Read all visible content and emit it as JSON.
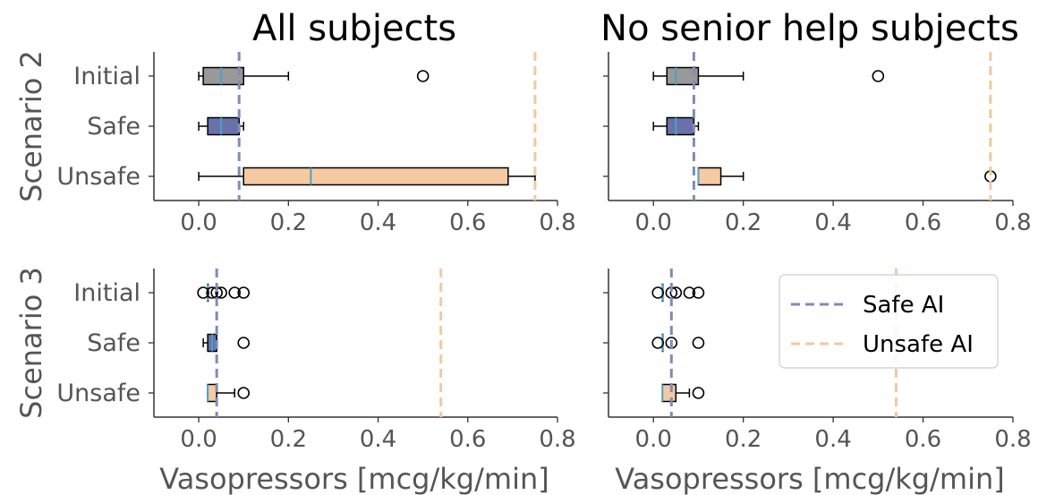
{
  "figure": {
    "col_titles": [
      "All subjects",
      "No senior help subjects"
    ],
    "row_titles": [
      "Scenario 2",
      "Scenario 3"
    ],
    "xlabel": "Vasopressors [mcg/kg/min]"
  },
  "legend": {
    "entries": [
      {
        "label": "Safe AI",
        "color": "#7f8bb8"
      },
      {
        "label": "Unsafe AI",
        "color": "#f1c8a0"
      }
    ]
  },
  "chart_data": [
    {
      "type": "box",
      "panel": "Scenario 2 / All subjects",
      "title": "All subjects",
      "ylabel": "Scenario 2",
      "xlabel": "",
      "xlim": [
        -0.1,
        0.8
      ],
      "xticks": [
        "0.0",
        "0.2",
        "0.4",
        "0.6",
        "0.8"
      ],
      "categories": [
        "Initial",
        "Safe",
        "Unsafe"
      ],
      "boxes": [
        {
          "category": "Initial",
          "whisker_low": 0.0,
          "q1": 0.01,
          "median": 0.05,
          "q3": 0.1,
          "whisker_high": 0.2,
          "outliers": [
            0.5
          ],
          "color": "#999999"
        },
        {
          "category": "Safe",
          "whisker_low": 0.0,
          "q1": 0.02,
          "median": 0.05,
          "q3": 0.09,
          "whisker_high": 0.1,
          "outliers": [],
          "color": "#6872a8"
        },
        {
          "category": "Unsafe",
          "whisker_low": 0.0,
          "q1": 0.1,
          "median": 0.25,
          "q3": 0.69,
          "whisker_high": 0.75,
          "outliers": [],
          "color": "#f5c9a3"
        }
      ],
      "ref_lines": [
        {
          "name": "Safe AI",
          "x": 0.09,
          "color": "#7f8bb8"
        },
        {
          "name": "Unsafe AI",
          "x": 0.75,
          "color": "#f1c8a0"
        }
      ]
    },
    {
      "type": "box",
      "panel": "Scenario 2 / No senior help subjects",
      "title": "No senior help subjects",
      "ylabel": "",
      "xlabel": "",
      "xlim": [
        -0.1,
        0.8
      ],
      "xticks": [
        "0.0",
        "0.2",
        "0.4",
        "0.6",
        "0.8"
      ],
      "categories": [
        "Initial",
        "Safe",
        "Unsafe"
      ],
      "boxes": [
        {
          "category": "Initial",
          "whisker_low": 0.0,
          "q1": 0.03,
          "median": 0.05,
          "q3": 0.1,
          "whisker_high": 0.2,
          "outliers": [
            0.5
          ],
          "color": "#999999"
        },
        {
          "category": "Safe",
          "whisker_low": 0.0,
          "q1": 0.03,
          "median": 0.05,
          "q3": 0.09,
          "whisker_high": 0.1,
          "outliers": [],
          "color": "#6872a8"
        },
        {
          "category": "Unsafe",
          "whisker_low": 0.1,
          "q1": 0.1,
          "median": 0.1,
          "q3": 0.15,
          "whisker_high": 0.2,
          "outliers": [
            0.75
          ],
          "color": "#f5c9a3"
        }
      ],
      "ref_lines": [
        {
          "name": "Safe AI",
          "x": 0.09,
          "color": "#7f8bb8"
        },
        {
          "name": "Unsafe AI",
          "x": 0.75,
          "color": "#f1c8a0"
        }
      ]
    },
    {
      "type": "box",
      "panel": "Scenario 3 / All subjects",
      "title": "",
      "ylabel": "Scenario 3",
      "xlabel": "Vasopressors [mcg/kg/min]",
      "xlim": [
        -0.1,
        0.8
      ],
      "xticks": [
        "0.0",
        "0.2",
        "0.4",
        "0.6",
        "0.8"
      ],
      "categories": [
        "Initial",
        "Safe",
        "Unsafe"
      ],
      "boxes": [
        {
          "category": "Initial",
          "whisker_low": 0.02,
          "q1": 0.02,
          "median": 0.02,
          "q3": 0.02,
          "whisker_high": 0.02,
          "outliers": [
            0.01,
            0.03,
            0.04,
            0.05,
            0.08,
            0.1
          ],
          "color": "#999999"
        },
        {
          "category": "Safe",
          "whisker_low": 0.01,
          "q1": 0.02,
          "median": 0.03,
          "q3": 0.04,
          "whisker_high": 0.04,
          "outliers": [
            0.1
          ],
          "color": "#6872a8"
        },
        {
          "category": "Unsafe",
          "whisker_low": 0.02,
          "q1": 0.02,
          "median": 0.02,
          "q3": 0.04,
          "whisker_high": 0.08,
          "outliers": [
            0.1
          ],
          "color": "#f5c9a3"
        }
      ],
      "ref_lines": [
        {
          "name": "Safe AI",
          "x": 0.04,
          "color": "#7f8bb8"
        },
        {
          "name": "Unsafe AI",
          "x": 0.54,
          "color": "#f1c8a0"
        }
      ]
    },
    {
      "type": "box",
      "panel": "Scenario 3 / No senior help subjects",
      "title": "",
      "ylabel": "",
      "xlabel": "Vasopressors [mcg/kg/min]",
      "xlim": [
        -0.1,
        0.8
      ],
      "xticks": [
        "0.0",
        "0.2",
        "0.4",
        "0.6",
        "0.8"
      ],
      "categories": [
        "Initial",
        "Safe",
        "Unsafe"
      ],
      "boxes": [
        {
          "category": "Initial",
          "whisker_low": 0.02,
          "q1": 0.02,
          "median": 0.02,
          "q3": 0.02,
          "whisker_high": 0.02,
          "outliers": [
            0.01,
            0.04,
            0.05,
            0.08,
            0.1
          ],
          "color": "#999999"
        },
        {
          "category": "Safe",
          "whisker_low": 0.02,
          "q1": 0.02,
          "median": 0.02,
          "q3": 0.02,
          "whisker_high": 0.02,
          "outliers": [
            0.01,
            0.04,
            0.1
          ],
          "color": "#6872a8"
        },
        {
          "category": "Unsafe",
          "whisker_low": 0.02,
          "q1": 0.02,
          "median": 0.02,
          "q3": 0.05,
          "whisker_high": 0.08,
          "outliers": [
            0.1
          ],
          "color": "#f5c9a3"
        }
      ],
      "ref_lines": [
        {
          "name": "Safe AI",
          "x": 0.04,
          "color": "#7f8bb8"
        },
        {
          "name": "Unsafe AI",
          "x": 0.54,
          "color": "#f1c8a0"
        }
      ]
    }
  ]
}
